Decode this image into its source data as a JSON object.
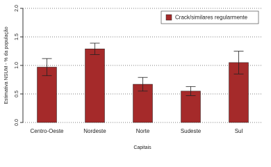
{
  "chart_data": {
    "type": "bar",
    "categories": [
      "Centro-Oeste",
      "Nordeste",
      "Norte",
      "Sudeste",
      "Sul"
    ],
    "series": [
      {
        "name": "Crack/similares regularmente",
        "color": "#a52a2a",
        "values": [
          0.97,
          1.29,
          0.67,
          0.55,
          1.05
        ],
        "errors": [
          0.15,
          0.1,
          0.12,
          0.08,
          0.2
        ]
      }
    ],
    "x_label": "Capitais",
    "y_label": "Estimativa NSUM - % da população",
    "ylim": [
      0,
      2.0
    ],
    "yticks": [
      {
        "value": 0,
        "label": "0.0"
      },
      0.5,
      {
        "value": 1,
        "label": "1.0"
      },
      1.5,
      {
        "value": 2,
        "label": "2.0"
      }
    ],
    "grid": true,
    "legend": "top-right"
  }
}
